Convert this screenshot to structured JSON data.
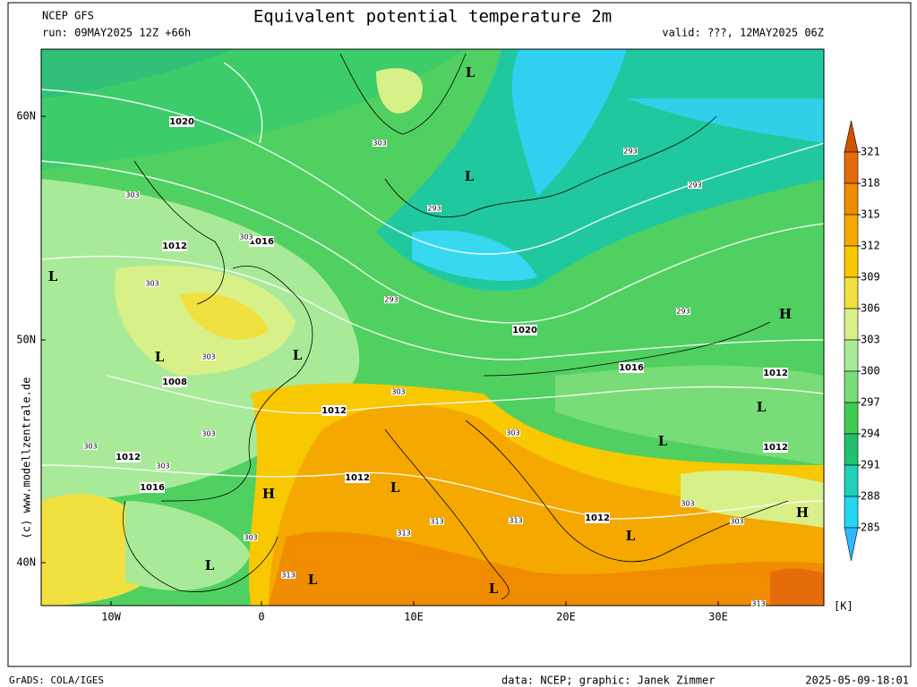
{
  "header": {
    "model": "NCEP GFS",
    "run": "run: 09MAY2025 12Z +66h",
    "title": "Equivalent potential temperature 2m",
    "valid": "valid: ???, 12MAY2025 06Z"
  },
  "credit": "(c) www.modellzentrale.de",
  "axes": {
    "lat_labels": [
      "60N",
      "50N",
      "40N"
    ],
    "lon_labels": [
      "10W",
      "0",
      "10E",
      "20E",
      "30E"
    ]
  },
  "colorbar": {
    "ticks": [
      321,
      318,
      315,
      312,
      309,
      306,
      303,
      300,
      297,
      294,
      291,
      288,
      285
    ],
    "colors": [
      "#d35400",
      "#e46c0a",
      "#f08c00",
      "#f5a800",
      "#f8c800",
      "#f0e040",
      "#d8f088",
      "#a8ea98",
      "#78dc78",
      "#40cc50",
      "#20c070",
      "#20d0b8",
      "#20d8f0",
      "#30b8ff"
    ],
    "unit": "[K]"
  },
  "map": {
    "isobar_labels": [
      "1020",
      "1012",
      "1016",
      "1008",
      "1012",
      "1012",
      "1016",
      "1012",
      "1020",
      "1016",
      "1012",
      "1012",
      "1012"
    ],
    "pressure_centers": [
      "L",
      "L",
      "L",
      "L",
      "L",
      "L",
      "L",
      "L",
      "L",
      "L",
      "L",
      "L",
      "H",
      "H",
      "H"
    ],
    "contour_labels": [
      "303",
      "303",
      "303",
      "303",
      "293",
      "293",
      "293",
      "293",
      "293",
      "303",
      "303",
      "303",
      "303",
      "303",
      "303",
      "303",
      "313",
      "313",
      "313",
      "313",
      "303",
      "303",
      "313"
    ]
  },
  "footer": {
    "left": "GrADS: COLA/IGES",
    "center": "data: NCEP; graphic: Janek Zimmer",
    "right": "2025-05-09-18:01"
  }
}
